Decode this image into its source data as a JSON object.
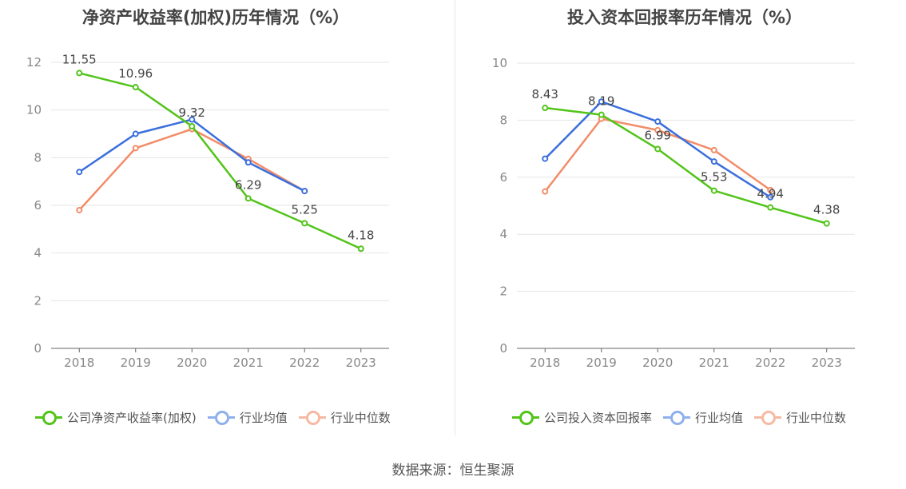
{
  "source": "数据来源：恒生聚源",
  "colors": {
    "company": "#52c41a",
    "industry_avg": "#3a6fdc",
    "industry_median": "#f28c68",
    "grid": "#e6e6e6",
    "axis": "#666666",
    "tick_text": "#888888",
    "label_text": "#444444"
  },
  "chart_data": [
    {
      "type": "line",
      "title": "净资产收益率(加权)历年情况（%）",
      "x": [
        "2018",
        "2019",
        "2020",
        "2021",
        "2022",
        "2023"
      ],
      "ylim": [
        0,
        12
      ],
      "yticks": [
        "0",
        "2",
        "4",
        "6",
        "8",
        "10",
        "12"
      ],
      "grid": true,
      "legend_position": "bottom",
      "series": [
        {
          "name": "公司净资产收益率(加权)",
          "color": "#52c41a",
          "values": [
            11.55,
            10.96,
            9.32,
            6.29,
            5.25,
            4.18
          ],
          "labels": [
            "11.55",
            "10.96",
            "9.32",
            "6.29",
            "5.25",
            "4.18"
          ]
        },
        {
          "name": "行业均值",
          "color": "#3a6fdc",
          "values": [
            7.4,
            9.0,
            9.6,
            7.8,
            6.6,
            null
          ]
        },
        {
          "name": "行业中位数",
          "color": "#f28c68",
          "values": [
            5.8,
            8.4,
            9.2,
            7.95,
            6.6,
            null
          ]
        }
      ]
    },
    {
      "type": "line",
      "title": "投入资本回报率历年情况（%）",
      "x": [
        "2018",
        "2019",
        "2020",
        "2021",
        "2022",
        "2023"
      ],
      "ylim": [
        0,
        10
      ],
      "yticks": [
        "0",
        "2",
        "4",
        "6",
        "8",
        "10"
      ],
      "grid": true,
      "legend_position": "bottom",
      "series": [
        {
          "name": "公司投入资本回报率",
          "color": "#52c41a",
          "values": [
            8.43,
            8.19,
            6.99,
            5.53,
            4.94,
            4.38
          ],
          "labels": [
            "8.43",
            "8.19",
            "6.99",
            "5.53",
            "4.94",
            "4.38"
          ]
        },
        {
          "name": "行业均值",
          "color": "#3a6fdc",
          "values": [
            6.65,
            8.65,
            7.95,
            6.55,
            5.3,
            null
          ]
        },
        {
          "name": "行业中位数",
          "color": "#f28c68",
          "values": [
            5.5,
            8.05,
            7.65,
            6.95,
            5.55,
            null
          ]
        }
      ]
    }
  ]
}
